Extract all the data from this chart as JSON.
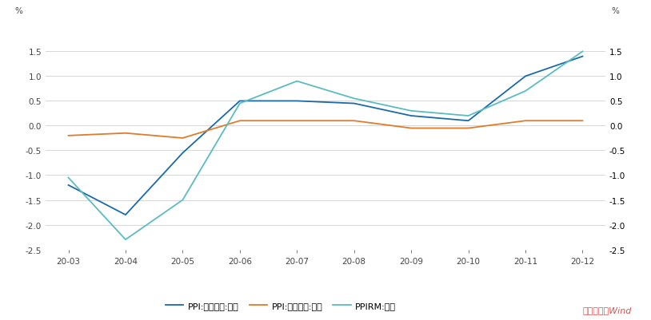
{
  "x_labels": [
    "20-03",
    "20-04",
    "20-05",
    "20-06",
    "20-07",
    "20-08",
    "20-09",
    "20-10",
    "20-11",
    "20-12"
  ],
  "ppi_production": [
    -1.2,
    -1.8,
    -0.55,
    0.5,
    0.5,
    0.45,
    0.2,
    0.1,
    1.0,
    1.4
  ],
  "ppi_living": [
    -0.2,
    -0.15,
    -0.25,
    0.1,
    0.1,
    0.1,
    -0.05,
    -0.05,
    0.1,
    0.1
  ],
  "ppirm": [
    -1.05,
    -2.3,
    -1.5,
    0.45,
    0.9,
    0.55,
    0.3,
    0.2,
    0.7,
    1.5
  ],
  "ppi_production_color": "#1a6aa8",
  "ppi_living_color": "#e07b2a",
  "ppirm_color": "#5bbcbf",
  "ylim_min": -2.5,
  "ylim_max": 2.0,
  "yticks": [
    -2.5,
    -2.0,
    -1.5,
    -1.0,
    -0.5,
    0.0,
    0.5,
    1.0,
    1.5
  ],
  "ylabel": "%",
  "legend_ppi_prod": "PPI:生产资料:环比",
  "legend_ppi_liv": "PPI:生活资料:环比",
  "legend_ppirm": "PPIRM:环比",
  "source_text": "数据来源：Wind",
  "source_color": "#e05050",
  "background_color": "#ffffff",
  "grid_color": "#d0d0d0"
}
